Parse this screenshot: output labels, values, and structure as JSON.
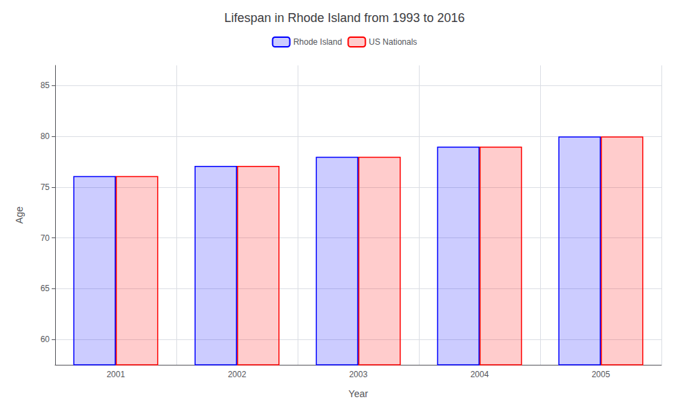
{
  "chart_data": {
    "type": "bar",
    "title": "Lifespan in Rhode Island from 1993 to 2016",
    "xlabel": "Year",
    "ylabel": "Age",
    "categories": [
      "2001",
      "2002",
      "2003",
      "2004",
      "2005"
    ],
    "series": [
      {
        "name": "Rhode Island",
        "color": "#0000ff",
        "values": [
          76.1,
          77.1,
          78.0,
          79.0,
          80.0
        ]
      },
      {
        "name": "US Nationals",
        "color": "#ff0000",
        "values": [
          76.1,
          77.1,
          78.0,
          79.0,
          80.0
        ]
      }
    ],
    "ylim": [
      57.5,
      87
    ],
    "yticks": [
      60,
      65,
      70,
      75,
      80,
      85
    ],
    "grid": true,
    "legend": "top"
  }
}
